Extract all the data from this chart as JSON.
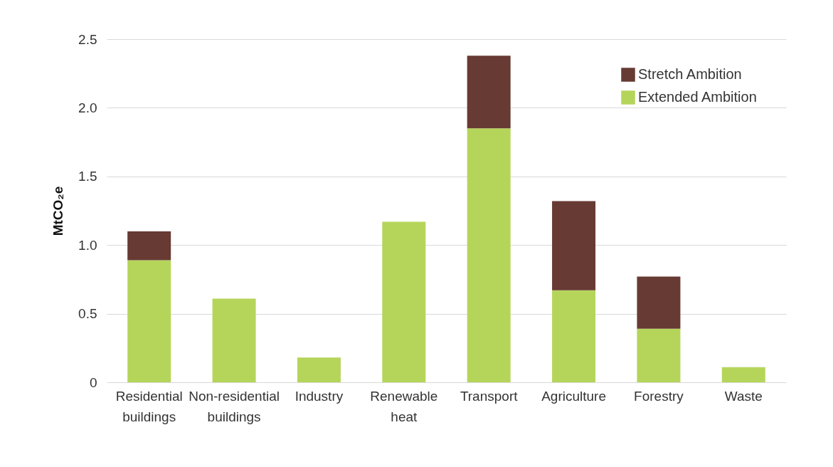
{
  "chart_data": {
    "type": "bar",
    "stacked": true,
    "ylabel": "MtCO₂e",
    "categories": [
      "Residential buildings",
      "Non-residential buildings",
      "Industry",
      "Renewable heat",
      "Transport",
      "Agriculture",
      "Forestry",
      "Waste"
    ],
    "series": [
      {
        "name": "Extended Ambition",
        "color": "#b5d55a",
        "values": [
          0.89,
          0.61,
          0.18,
          1.17,
          1.85,
          0.67,
          0.39,
          0.11
        ]
      },
      {
        "name": "Stretch Ambition",
        "color": "#673a34",
        "values": [
          0.21,
          null,
          null,
          null,
          0.53,
          0.65,
          0.38,
          null
        ]
      }
    ],
    "ylim": [
      0,
      2.5
    ],
    "yticks": [
      0,
      0.5,
      {
        "value": 1,
        "label": "1.0"
      },
      1.5,
      {
        "value": 2,
        "label": "2.0"
      },
      2.5
    ],
    "grid": "y",
    "legend": "top right"
  }
}
